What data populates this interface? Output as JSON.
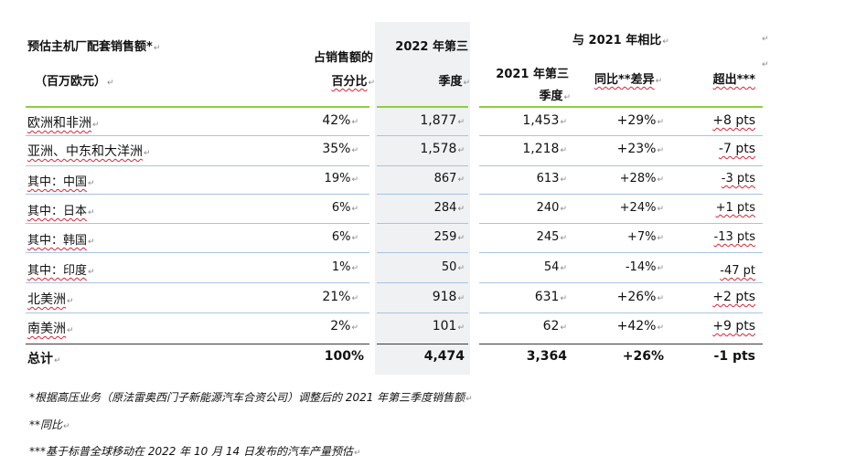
{
  "header": {
    "region_title": "预估主机厂配套销售额*",
    "region_unit": "（百万欧元）",
    "share_line1": "占销售额的",
    "share_line2": "百分比",
    "q2022_line1": "2022 年第三",
    "q2022_line2": "季度",
    "compare_title": "与 2021 年相比",
    "q2021_line1": "2021 年第三",
    "q2021_line2": "季度",
    "yoy": "同比**差异",
    "outperf": "超出***"
  },
  "rows": [
    {
      "region": "欧洲和非洲",
      "share": "42%",
      "q2022": "1,877",
      "q2021": "1,453",
      "yoy": "+29%",
      "out": "+8 pts"
    },
    {
      "region": "亚洲、中东和大洋洲",
      "share": "35%",
      "q2022": "1,578",
      "q2021": "1,218",
      "yoy": "+23%",
      "out": "-7 pts"
    },
    {
      "region": "其中：中国",
      "share": "19%",
      "q2022": "867",
      "q2021": "613",
      "yoy": "+28%",
      "out": "-3 pts"
    },
    {
      "region": "其中：日本",
      "share": "6%",
      "q2022": "284",
      "q2021": "240",
      "yoy": "+24%",
      "out": "+1 pts"
    },
    {
      "region": "其中：韩国",
      "share": "6%",
      "q2022": "259",
      "q2021": "245",
      "yoy": "+7%",
      "out": "-13 pts"
    },
    {
      "region": "其中：印度",
      "share": "1%",
      "q2022": "50",
      "q2021": "54",
      "yoy": "-14%",
      "out": "-47 pt"
    },
    {
      "region": "北美洲",
      "share": "21%",
      "q2022": "918",
      "q2021": "631",
      "yoy": "+26%",
      "out": "+2 pts"
    },
    {
      "region": "南美洲",
      "share": "2%",
      "q2022": "101",
      "q2021": "62",
      "yoy": "+42%",
      "out": "+9 pts"
    }
  ],
  "total": {
    "region": "总计",
    "share": "100%",
    "q2022": "4,474",
    "q2021": "3,364",
    "yoy": "+26%",
    "out": "-1 pts"
  },
  "footnotes": [
    "*根据高压业务（原法雷奥西门子新能源汽车合资公司）调整后的 2021 年第三季度销售额",
    "**同比",
    "***基于标普全球移动在 2022 年 10 月 14 日发布的汽车产量预估"
  ],
  "colors": {
    "accent_rule": "#8fcf3c",
    "row_rule": "#a9c4dc",
    "highlight_column": "#eff1f3"
  }
}
